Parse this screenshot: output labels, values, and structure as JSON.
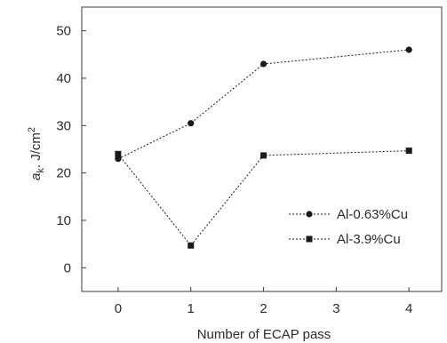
{
  "chart_data": {
    "type": "line",
    "x": [
      0,
      1,
      2,
      4
    ],
    "xlabel": "Number of ECAP pass",
    "ylabel_main": "a",
    "ylabel_sub": "k",
    "ylabel_rest": ". J/cm",
    "ylabel_sup": "2",
    "xlim": [
      -0.5,
      4.45
    ],
    "ylim": [
      -5,
      55
    ],
    "xticks": [
      0,
      1,
      2,
      3,
      4
    ],
    "yticks": [
      0,
      10,
      20,
      30,
      40,
      50
    ],
    "grid": false,
    "legend_position": "lower-right",
    "series": [
      {
        "name": "Al-0.63%Cu",
        "marker": "circle",
        "line_style": "dotted",
        "color": "#1a1a1a",
        "values": [
          23,
          30.5,
          43,
          46
        ]
      },
      {
        "name": "Al-3.9%Cu",
        "marker": "square",
        "line_style": "dotted",
        "color": "#1a1a1a",
        "values": [
          24,
          4.7,
          23.7,
          24.7
        ]
      }
    ]
  }
}
